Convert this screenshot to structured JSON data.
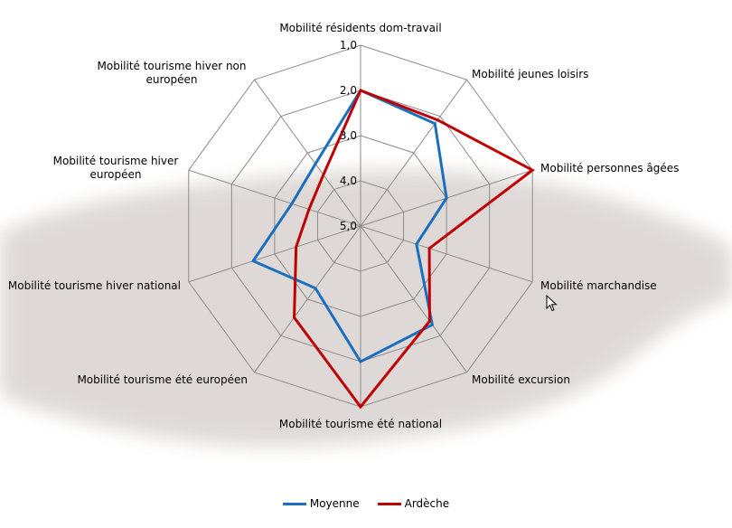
{
  "chart_data": {
    "type": "radar",
    "axes": [
      "Mobilité résidents dom-travail",
      "Mobilité jeunes loisirs",
      "Mobilité personnes âgées",
      "Mobilité marchandise",
      "Mobilité excursion",
      "Mobilité tourisme été national",
      "Mobilité tourisme été européen",
      "Mobilité tourisme hiver national",
      "Mobilité tourisme hiver européen",
      "Mobilité tourisme hiver non européen"
    ],
    "radial_ticks": [
      "1,0",
      "2,0",
      "3,0",
      "4,0",
      "5,0"
    ],
    "radial_range": [
      1.0,
      5.0
    ],
    "radial_reversed": true,
    "series": [
      {
        "name": "Moyenne",
        "color": "#1a70c0",
        "values": [
          2.0,
          2.2,
          3.0,
          3.7,
          2.3,
          2.0,
          3.3,
          2.5,
          3.4,
          3.3
        ]
      },
      {
        "name": "Ardèche",
        "color": "#c00000",
        "values": [
          2.0,
          2.1,
          1.0,
          3.4,
          2.4,
          1.0,
          2.5,
          3.5,
          3.8,
          3.6
        ]
      }
    ],
    "legend_position": "bottom",
    "grid": true
  },
  "legend": {
    "series0": "Moyenne",
    "series1": "Ardèche"
  }
}
